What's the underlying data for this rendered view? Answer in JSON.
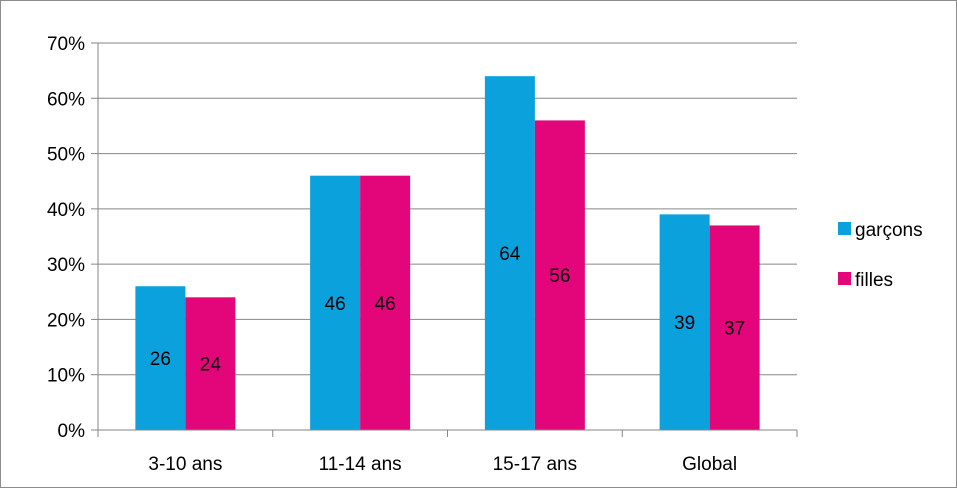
{
  "chart_data": {
    "type": "bar",
    "categories": [
      "3-10 ans",
      "11-14 ans",
      "15-17 ans",
      "Global"
    ],
    "series": [
      {
        "name": "garçons",
        "color": "#0aa1dd",
        "values": [
          26,
          46,
          64,
          39
        ]
      },
      {
        "name": "filles",
        "color": "#e2067a",
        "values": [
          24,
          46,
          56,
          37
        ]
      }
    ],
    "y_ticks": [
      "0%",
      "10%",
      "20%",
      "30%",
      "40%",
      "50%",
      "60%",
      "70%"
    ],
    "ylim": [
      0,
      70
    ],
    "grid": true,
    "legend_position": "right",
    "data_labels": true
  }
}
